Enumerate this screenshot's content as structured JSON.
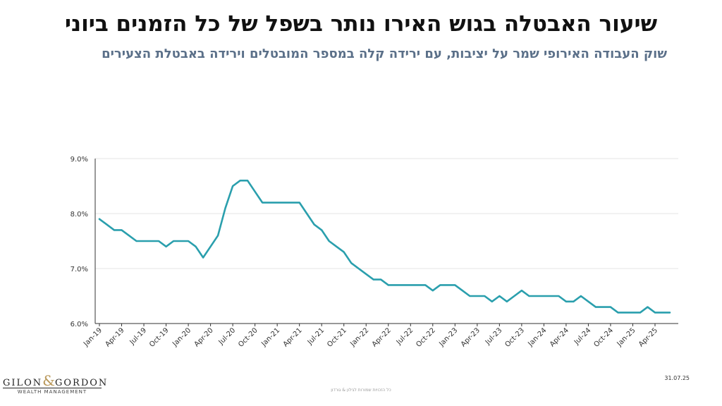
{
  "header": {
    "title": "שיעור האבטלה בגוש האירו נותר בשפל של כל הזמנים ביוני",
    "subtitle": "שוק העבודה האירופי שמר על יציבות, עם ירידה קלה במספר המובטלים וירידה באבטלת הצעירים"
  },
  "footer": {
    "logo_main_left": "GILON",
    "logo_amp": "&",
    "logo_main_right": "GORDON",
    "logo_sub": "WEALTH MANAGEMENT",
    "date": "31.07.25",
    "copyright": "כל הזכויות שמורות לגילון & גורדון"
  },
  "colors": {
    "line": "#2a9fad",
    "grid": "#e6e6e6",
    "axis": "#333333",
    "title": "#111111",
    "subtitle": "#5b7089",
    "logo_accent": "#b9985a"
  },
  "chart_data": {
    "type": "line",
    "title": "",
    "xlabel": "",
    "ylabel": "",
    "ylim": [
      6.0,
      9.0
    ],
    "y_ticks": [
      "6.0%",
      "7.0%",
      "8.0%",
      "9.0%"
    ],
    "y_tick_values": [
      6.0,
      7.0,
      8.0,
      9.0
    ],
    "x_ticks": [
      "Jan-19",
      "Apr-19",
      "Jul-19",
      "Oct-19",
      "Jan-20",
      "Apr-20",
      "Jul-20",
      "Oct-20",
      "Jan-21",
      "Apr-21",
      "Jul-21",
      "Oct-21",
      "Jan-22",
      "Apr-22",
      "Jul-22",
      "Oct-22",
      "Jan-23",
      "Apr-23",
      "Jul-23",
      "Oct-23",
      "Jan-24",
      "Apr-24",
      "Jul-24",
      "Oct-24",
      "Jan-25",
      "Apr-25"
    ],
    "grid": true,
    "legend": "none",
    "x": [
      "Jan-19",
      "Feb-19",
      "Mar-19",
      "Apr-19",
      "May-19",
      "Jun-19",
      "Jul-19",
      "Aug-19",
      "Sep-19",
      "Oct-19",
      "Nov-19",
      "Dec-19",
      "Jan-20",
      "Feb-20",
      "Mar-20",
      "Apr-20",
      "May-20",
      "Jun-20",
      "Jul-20",
      "Aug-20",
      "Sep-20",
      "Oct-20",
      "Nov-20",
      "Dec-20",
      "Jan-21",
      "Feb-21",
      "Mar-21",
      "Apr-21",
      "May-21",
      "Jun-21",
      "Jul-21",
      "Aug-21",
      "Sep-21",
      "Oct-21",
      "Nov-21",
      "Dec-21",
      "Jan-22",
      "Feb-22",
      "Mar-22",
      "Apr-22",
      "May-22",
      "Jun-22",
      "Jul-22",
      "Aug-22",
      "Sep-22",
      "Oct-22",
      "Nov-22",
      "Dec-22",
      "Jan-23",
      "Feb-23",
      "Mar-23",
      "Apr-23",
      "May-23",
      "Jun-23",
      "Jul-23",
      "Aug-23",
      "Sep-23",
      "Oct-23",
      "Nov-23",
      "Dec-23",
      "Jan-24",
      "Feb-24",
      "Mar-24",
      "Apr-24",
      "May-24",
      "Jun-24",
      "Jul-24",
      "Aug-24",
      "Sep-24",
      "Oct-24",
      "Nov-24",
      "Dec-24",
      "Jan-25",
      "Feb-25",
      "Mar-25",
      "Apr-25",
      "May-25",
      "Jun-25"
    ],
    "series": [
      {
        "values": [
          7.9,
          7.8,
          7.7,
          7.7,
          7.6,
          7.5,
          7.5,
          7.5,
          7.5,
          7.4,
          7.5,
          7.5,
          7.5,
          7.4,
          7.2,
          7.4,
          7.6,
          8.1,
          8.5,
          8.6,
          8.6,
          8.4,
          8.2,
          8.2,
          8.2,
          8.2,
          8.2,
          8.2,
          8.0,
          7.8,
          7.7,
          7.5,
          7.4,
          7.3,
          7.1,
          7.0,
          6.9,
          6.8,
          6.8,
          6.7,
          6.7,
          6.7,
          6.7,
          6.7,
          6.7,
          6.6,
          6.7,
          6.7,
          6.7,
          6.6,
          6.5,
          6.5,
          6.5,
          6.4,
          6.5,
          6.4,
          6.5,
          6.6,
          6.5,
          6.5,
          6.5,
          6.5,
          6.5,
          6.4,
          6.4,
          6.5,
          6.4,
          6.3,
          6.3,
          6.3,
          6.2,
          6.2,
          6.2,
          6.2,
          6.3,
          6.2,
          6.2,
          6.2
        ]
      }
    ]
  }
}
